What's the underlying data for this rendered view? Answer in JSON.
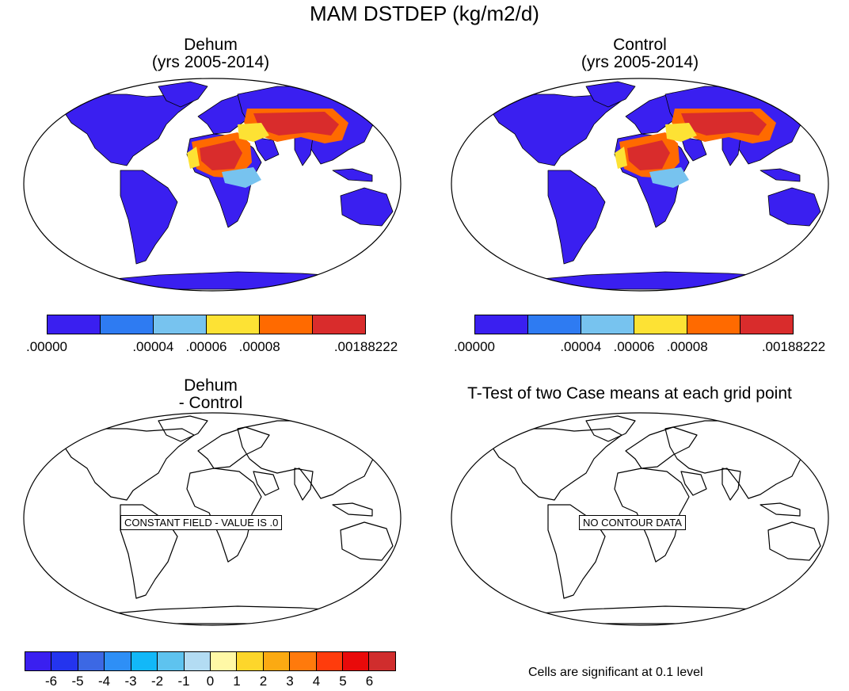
{
  "title": "MAM DSTDEP (kg/m2/d)",
  "colors": {
    "land": "#3a1ff0",
    "outline": "#000000",
    "absolute_scale": [
      "#3a1ff0",
      "#2e7bf2",
      "#77c3ef",
      "#fde234",
      "#ff6a00",
      "#d92c2c"
    ],
    "diff_scale": [
      "#3a1ff0",
      "#2434ee",
      "#3c68e4",
      "#2e8ff6",
      "#12b8f8",
      "#5ec3ef",
      "#b3dcf3",
      "#fff8a6",
      "#fdd62b",
      "#fbaa12",
      "#ff7a0c",
      "#ff3c0c",
      "#e90a0a",
      "#d02d2d"
    ]
  },
  "panels": [
    {
      "line1": "Dehum",
      "line2": "(yrs 2005-2014)",
      "kind": "field"
    },
    {
      "line1": "Control",
      "line2": "(yrs 2005-2014)",
      "kind": "field"
    },
    {
      "line1": "Dehum",
      "line2": "- Control",
      "kind": "outline",
      "message": "CONSTANT FIELD - VALUE IS .0"
    },
    {
      "line1": "T-Test of two Case means at each grid point",
      "kind": "outline",
      "message": "NO CONTOUR DATA"
    }
  ],
  "colorbar_abs": {
    "labels": [
      ".00000",
      ".00004",
      ".00006",
      ".00008",
      ".00188222"
    ]
  },
  "colorbar_diff": {
    "labels": [
      "-6",
      "-5",
      "-4",
      "-3",
      "-2",
      "-1",
      "0",
      "1",
      "2",
      "3",
      "4",
      "5",
      "6"
    ]
  },
  "footnote": "Cells are significant at 0.1 level",
  "chart_data": [
    {
      "type": "heatmap",
      "title": "Dehum (yrs 2005-2014)",
      "variable": "MAM DSTDEP (kg/m2/d)",
      "colorbar_levels": [
        0.0,
        4e-05,
        6e-05,
        8e-05,
        0.00188222
      ],
      "projection": "Robinson"
    },
    {
      "type": "heatmap",
      "title": "Control (yrs 2005-2014)",
      "variable": "MAM DSTDEP (kg/m2/d)",
      "colorbar_levels": [
        0.0,
        4e-05,
        6e-05,
        8e-05,
        0.00188222
      ],
      "projection": "Robinson"
    },
    {
      "type": "heatmap",
      "title": "Dehum - Control",
      "note": "CONSTANT FIELD - VALUE IS .0",
      "colorbar_levels": [
        -6,
        -5,
        -4,
        -3,
        -2,
        -1,
        0,
        1,
        2,
        3,
        4,
        5,
        6
      ]
    },
    {
      "type": "heatmap",
      "title": "T-Test of two Case means at each grid point",
      "note": "NO CONTOUR DATA"
    }
  ]
}
